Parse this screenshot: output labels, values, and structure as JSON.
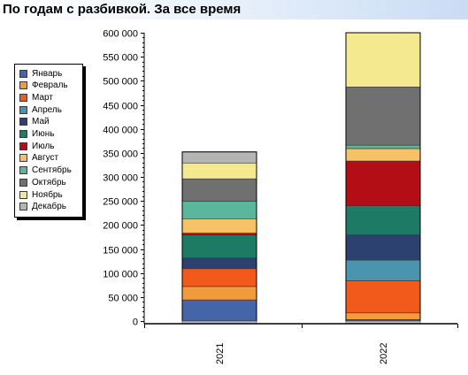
{
  "title": "По годам с разбивкой. За все время",
  "chart_data": {
    "type": "bar",
    "stacked": true,
    "categories": [
      "2021",
      "2022"
    ],
    "ylim": [
      0,
      600000
    ],
    "yticks": [
      0,
      50000,
      100000,
      150000,
      200000,
      250000,
      300000,
      350000,
      400000,
      450000,
      500000,
      550000,
      600000
    ],
    "ytick_labels": [
      "0",
      "50 000",
      "100 000",
      "150 000",
      "200 000",
      "250 000",
      "300 000",
      "350 000",
      "400 000",
      "450 000",
      "500 000",
      "550 000",
      "600 000"
    ],
    "legend_position": "left",
    "series": [
      {
        "name": "Январь",
        "color": "#4565a8",
        "values": [
          44000,
          3000
        ]
      },
      {
        "name": "Февраль",
        "color": "#f39a3d",
        "values": [
          28000,
          14000
        ]
      },
      {
        "name": "Март",
        "color": "#f25a1c",
        "values": [
          37000,
          67000
        ]
      },
      {
        "name": "Апрель",
        "color": "#4a95ad",
        "values": [
          0,
          43000
        ]
      },
      {
        "name": "Май",
        "color": "#2c4170",
        "values": [
          22000,
          52000
        ]
      },
      {
        "name": "Июнь",
        "color": "#1d7a65",
        "values": [
          48000,
          61000
        ]
      },
      {
        "name": "Июль",
        "color": "#b30d16",
        "values": [
          4000,
          93000
        ]
      },
      {
        "name": "Август",
        "color": "#f5c266",
        "values": [
          30000,
          26000
        ]
      },
      {
        "name": "Сентябрь",
        "color": "#5bb79b",
        "values": [
          36000,
          7000
        ]
      },
      {
        "name": "Октябрь",
        "color": "#707070",
        "values": [
          47000,
          121000
        ]
      },
      {
        "name": "Ноябрь",
        "color": "#f5e98f",
        "values": [
          33000,
          113000
        ]
      },
      {
        "name": "Декабрь",
        "color": "#b5b5b5",
        "values": [
          23000,
          0
        ]
      }
    ]
  }
}
